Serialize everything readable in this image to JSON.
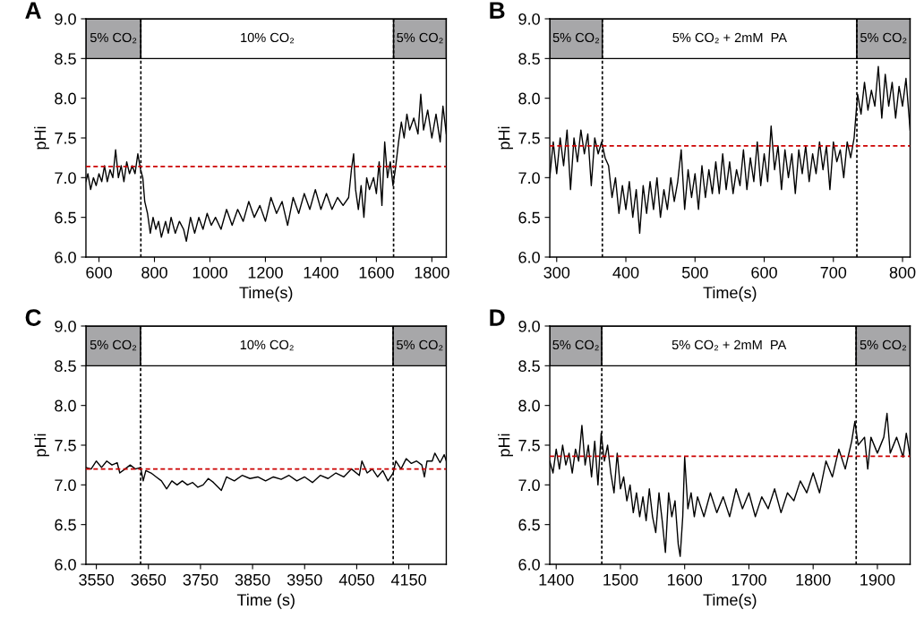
{
  "chart_data": [
    {
      "type": "line",
      "title": "A",
      "xlabel": "Time(s)",
      "ylabel": "pHi",
      "xlim": [
        553,
        1852
      ],
      "xticks": [
        600,
        800,
        1000,
        1200,
        1400,
        1600,
        1800
      ],
      "ylim": [
        6.0,
        9.0
      ],
      "yticks": [
        {
          "value": 6.0,
          "label": "6.0"
        },
        {
          "value": 6.5,
          "label": "6.5"
        },
        {
          "value": 7.0,
          "label": "7.0"
        },
        {
          "value": 7.5,
          "label": "7.5"
        },
        {
          "value": 8.0,
          "label": "8.0"
        },
        {
          "value": 8.5,
          "label": "8.5"
        },
        {
          "value": 9.0,
          "label": "9.0"
        }
      ],
      "bands": [
        {
          "axis": "x",
          "from": 553,
          "to": 751,
          "label": "5% CO₂",
          "color": "#a7a7a9"
        },
        {
          "axis": "x",
          "from": 751,
          "to": 1662,
          "label": "10% CO₂",
          "color": "#ffffff"
        },
        {
          "axis": "x",
          "from": 1662,
          "to": 1852,
          "label": "5% CO₂",
          "color": "#a7a7a9"
        }
      ],
      "ref_lines": [
        {
          "axis": "x",
          "value": 751,
          "color": "#000000",
          "line_style": "dotted"
        },
        {
          "axis": "x",
          "value": 1662,
          "color": "#000000",
          "line_style": "dotted"
        },
        {
          "axis": "y",
          "value": 7.14,
          "color": "#cc0000",
          "line_style": "dashed"
        }
      ],
      "series": [
        {
          "color": "#000000",
          "x": [
            553,
            560,
            570,
            580,
            590,
            600,
            610,
            620,
            630,
            640,
            650,
            660,
            670,
            680,
            690,
            700,
            710,
            720,
            730,
            740,
            750,
            758,
            765,
            775,
            785,
            795,
            805,
            815,
            825,
            840,
            850,
            860,
            875,
            890,
            905,
            915,
            930,
            945,
            960,
            975,
            990,
            1005,
            1020,
            1040,
            1060,
            1080,
            1100,
            1120,
            1140,
            1160,
            1180,
            1200,
            1220,
            1240,
            1260,
            1280,
            1300,
            1320,
            1340,
            1360,
            1380,
            1400,
            1420,
            1440,
            1460,
            1480,
            1500,
            1510,
            1518,
            1525,
            1535,
            1545,
            1555,
            1565,
            1575,
            1590,
            1600,
            1610,
            1620,
            1630,
            1640,
            1650,
            1660,
            1670,
            1680,
            1690,
            1700,
            1710,
            1720,
            1735,
            1750,
            1760,
            1770,
            1785,
            1800,
            1815,
            1830,
            1840,
            1852
          ],
          "values": [
            6.95,
            7.05,
            6.85,
            7.0,
            6.9,
            7.05,
            6.95,
            7.15,
            6.95,
            7.1,
            7.0,
            7.35,
            7.0,
            7.15,
            6.95,
            7.2,
            7.05,
            7.15,
            7.05,
            7.3,
            7.1,
            7.0,
            6.7,
            6.55,
            6.3,
            6.5,
            6.35,
            6.45,
            6.25,
            6.45,
            6.3,
            6.5,
            6.3,
            6.45,
            6.35,
            6.2,
            6.5,
            6.3,
            6.5,
            6.35,
            6.55,
            6.4,
            6.5,
            6.35,
            6.6,
            6.4,
            6.6,
            6.45,
            6.7,
            6.5,
            6.65,
            6.45,
            6.75,
            6.55,
            6.7,
            6.4,
            6.75,
            6.55,
            6.8,
            6.6,
            6.85,
            6.6,
            6.8,
            6.6,
            6.75,
            6.65,
            6.75,
            7.1,
            7.3,
            6.85,
            6.6,
            6.9,
            6.5,
            7.0,
            6.85,
            7.0,
            6.8,
            7.2,
            6.65,
            7.45,
            7.0,
            7.2,
            6.9,
            7.15,
            7.45,
            7.7,
            7.5,
            7.8,
            7.6,
            7.75,
            7.55,
            8.05,
            7.6,
            7.85,
            7.5,
            7.8,
            7.45,
            7.9,
            7.55
          ]
        }
      ]
    },
    {
      "type": "line",
      "title": "B",
      "xlabel": "Time(s)",
      "ylabel": "pHi",
      "xlim": [
        290,
        811
      ],
      "xticks": [
        300,
        400,
        500,
        600,
        700,
        800
      ],
      "ylim": [
        6.0,
        9.0
      ],
      "yticks": [
        {
          "value": 6.0,
          "label": "6.0"
        },
        {
          "value": 6.5,
          "label": "6.5"
        },
        {
          "value": 7.0,
          "label": "7.0"
        },
        {
          "value": 7.5,
          "label": "7.5"
        },
        {
          "value": 8.0,
          "label": "8.0"
        },
        {
          "value": 8.5,
          "label": "8.5"
        },
        {
          "value": 9.0,
          "label": "9.0"
        }
      ],
      "bands": [
        {
          "axis": "x",
          "from": 290,
          "to": 366,
          "label": "5% CO₂",
          "color": "#a7a7a9"
        },
        {
          "axis": "x",
          "from": 366,
          "to": 734,
          "label": "5% CO₂ + 2mM  PA",
          "color": "#ffffff"
        },
        {
          "axis": "x",
          "from": 734,
          "to": 811,
          "label": "5% CO₂",
          "color": "#a7a7a9"
        }
      ],
      "ref_lines": [
        {
          "axis": "x",
          "value": 366,
          "color": "#000000",
          "line_style": "dotted"
        },
        {
          "axis": "x",
          "value": 734,
          "color": "#000000",
          "line_style": "dotted"
        },
        {
          "axis": "y",
          "value": 7.4,
          "color": "#cc0000",
          "line_style": "dashed"
        }
      ],
      "series": [
        {
          "color": "#000000",
          "x": [
            290,
            295,
            300,
            305,
            310,
            315,
            320,
            325,
            330,
            335,
            340,
            345,
            350,
            355,
            360,
            365,
            370,
            375,
            380,
            385,
            390,
            395,
            400,
            405,
            410,
            415,
            420,
            425,
            430,
            435,
            440,
            445,
            450,
            455,
            460,
            465,
            470,
            475,
            480,
            485,
            490,
            495,
            500,
            505,
            510,
            515,
            520,
            525,
            530,
            535,
            540,
            545,
            550,
            555,
            560,
            565,
            570,
            575,
            580,
            585,
            590,
            595,
            600,
            605,
            610,
            615,
            620,
            625,
            630,
            635,
            640,
            645,
            650,
            655,
            660,
            665,
            670,
            675,
            680,
            685,
            690,
            695,
            700,
            705,
            710,
            715,
            720,
            725,
            730,
            735,
            740,
            745,
            750,
            755,
            760,
            765,
            770,
            775,
            780,
            785,
            790,
            795,
            800,
            805,
            811
          ],
          "values": [
            7.0,
            7.45,
            7.05,
            7.5,
            7.15,
            7.6,
            6.85,
            7.5,
            7.2,
            7.6,
            7.3,
            7.55,
            6.9,
            7.5,
            7.3,
            7.45,
            7.25,
            7.15,
            6.75,
            7.0,
            6.55,
            6.9,
            6.6,
            6.95,
            6.5,
            6.85,
            6.3,
            6.9,
            6.55,
            6.95,
            6.6,
            7.0,
            6.5,
            6.85,
            6.6,
            7.0,
            6.7,
            6.95,
            7.35,
            6.6,
            7.1,
            6.75,
            7.05,
            6.6,
            7.15,
            6.75,
            7.1,
            6.8,
            7.2,
            6.8,
            7.3,
            6.85,
            7.2,
            6.8,
            7.1,
            6.9,
            7.35,
            6.85,
            7.25,
            6.95,
            7.45,
            6.9,
            7.3,
            6.95,
            7.65,
            7.1,
            7.4,
            6.85,
            7.35,
            7.0,
            7.3,
            6.8,
            7.35,
            7.05,
            7.4,
            6.95,
            7.3,
            7.05,
            7.45,
            7.1,
            7.4,
            6.85,
            7.45,
            7.2,
            7.35,
            7.0,
            7.45,
            7.25,
            7.5,
            8.05,
            7.8,
            8.2,
            7.85,
            8.1,
            7.9,
            8.4,
            7.75,
            8.3,
            7.9,
            8.2,
            7.75,
            8.15,
            7.9,
            8.25,
            7.6
          ]
        }
      ]
    },
    {
      "type": "line",
      "title": "C",
      "xlabel": "Time (s)",
      "ylabel": "pHi",
      "xlim": [
        3530,
        4222
      ],
      "xticks": [
        3550,
        3650,
        3750,
        3850,
        3950,
        4050,
        4150
      ],
      "ylim": [
        6.0,
        9.0
      ],
      "yticks": [
        {
          "value": 6.0,
          "label": "6.0"
        },
        {
          "value": 6.5,
          "label": "6.5"
        },
        {
          "value": 7.0,
          "label": "7.0"
        },
        {
          "value": 7.5,
          "label": "7.5"
        },
        {
          "value": 8.0,
          "label": "8.0"
        },
        {
          "value": 8.5,
          "label": "8.5"
        },
        {
          "value": 9.0,
          "label": "9.0"
        }
      ],
      "bands": [
        {
          "axis": "x",
          "from": 3530,
          "to": 3635,
          "label": "5% CO₂",
          "color": "#a7a7a9"
        },
        {
          "axis": "x",
          "from": 3635,
          "to": 4120,
          "label": "10% CO₂",
          "color": "#ffffff"
        },
        {
          "axis": "x",
          "from": 4120,
          "to": 4222,
          "label": "5% CO₂",
          "color": "#a7a7a9"
        }
      ],
      "ref_lines": [
        {
          "axis": "x",
          "value": 3635,
          "color": "#000000",
          "line_style": "dotted"
        },
        {
          "axis": "x",
          "value": 4120,
          "color": "#000000",
          "line_style": "dotted"
        },
        {
          "axis": "y",
          "value": 7.2,
          "color": "#cc0000",
          "line_style": "dashed"
        }
      ],
      "series": [
        {
          "color": "#000000",
          "x": [
            3530,
            3540,
            3550,
            3560,
            3570,
            3580,
            3590,
            3595,
            3605,
            3615,
            3625,
            3635,
            3640,
            3645,
            3655,
            3665,
            3675,
            3685,
            3695,
            3705,
            3715,
            3725,
            3735,
            3745,
            3755,
            3765,
            3775,
            3790,
            3800,
            3815,
            3830,
            3845,
            3860,
            3875,
            3890,
            3905,
            3920,
            3935,
            3950,
            3965,
            3980,
            3995,
            4010,
            4025,
            4040,
            4055,
            4060,
            4070,
            4080,
            4090,
            4100,
            4110,
            4120,
            4125,
            4135,
            4145,
            4155,
            4165,
            4175,
            4180,
            4185,
            4195,
            4200,
            4210,
            4218,
            4222
          ],
          "values": [
            7.22,
            7.2,
            7.3,
            7.22,
            7.3,
            7.25,
            7.28,
            7.15,
            7.2,
            7.25,
            7.2,
            7.22,
            7.05,
            7.18,
            7.15,
            7.1,
            7.05,
            6.95,
            7.05,
            7.0,
            7.05,
            7.0,
            7.03,
            6.97,
            7.0,
            7.08,
            7.03,
            6.93,
            7.1,
            7.05,
            7.12,
            7.08,
            7.1,
            7.05,
            7.1,
            7.07,
            7.12,
            7.05,
            7.1,
            7.03,
            7.12,
            7.08,
            7.15,
            7.1,
            7.2,
            7.12,
            7.3,
            7.15,
            7.2,
            7.1,
            7.18,
            7.05,
            7.15,
            7.3,
            7.2,
            7.33,
            7.27,
            7.3,
            7.25,
            7.1,
            7.3,
            7.3,
            7.4,
            7.28,
            7.38,
            7.3
          ]
        }
      ]
    },
    {
      "type": "line",
      "title": "D",
      "xlabel": "Time(s)",
      "ylabel": "pHi",
      "xlim": [
        1390,
        1951
      ],
      "xticks": [
        1400,
        1500,
        1600,
        1700,
        1800,
        1900
      ],
      "ylim": [
        6.0,
        9.0
      ],
      "yticks": [
        {
          "value": 6.0,
          "label": "6.0"
        },
        {
          "value": 6.5,
          "label": "6.5"
        },
        {
          "value": 7.0,
          "label": "7.0"
        },
        {
          "value": 7.5,
          "label": "7.5"
        },
        {
          "value": 8.0,
          "label": "8.0"
        },
        {
          "value": 8.5,
          "label": "8.5"
        },
        {
          "value": 9.0,
          "label": "9.0"
        }
      ],
      "bands": [
        {
          "axis": "x",
          "from": 1390,
          "to": 1471,
          "label": "5% CO₂",
          "color": "#a7a7a9"
        },
        {
          "axis": "x",
          "from": 1471,
          "to": 1867,
          "label": "5% CO₂ + 2mM  PA",
          "color": "#ffffff"
        },
        {
          "axis": "x",
          "from": 1867,
          "to": 1951,
          "label": "5% CO₂",
          "color": "#a7a7a9"
        }
      ],
      "ref_lines": [
        {
          "axis": "x",
          "value": 1471,
          "color": "#000000",
          "line_style": "dotted"
        },
        {
          "axis": "x",
          "value": 1867,
          "color": "#000000",
          "line_style": "dotted"
        },
        {
          "axis": "y",
          "value": 7.36,
          "color": "#cc0000",
          "line_style": "dashed"
        }
      ],
      "series": [
        {
          "color": "#000000",
          "x": [
            1390,
            1395,
            1400,
            1405,
            1410,
            1415,
            1420,
            1425,
            1430,
            1435,
            1440,
            1445,
            1450,
            1455,
            1460,
            1465,
            1470,
            1475,
            1480,
            1485,
            1490,
            1495,
            1500,
            1505,
            1510,
            1515,
            1520,
            1525,
            1530,
            1535,
            1540,
            1545,
            1550,
            1555,
            1560,
            1565,
            1570,
            1575,
            1580,
            1585,
            1590,
            1593,
            1597,
            1600,
            1605,
            1610,
            1615,
            1620,
            1630,
            1640,
            1650,
            1660,
            1670,
            1680,
            1690,
            1700,
            1710,
            1720,
            1730,
            1740,
            1750,
            1760,
            1770,
            1780,
            1790,
            1800,
            1810,
            1820,
            1830,
            1840,
            1850,
            1860,
            1865,
            1870,
            1880,
            1885,
            1890,
            1900,
            1910,
            1915,
            1920,
            1930,
            1940,
            1945,
            1951
          ],
          "values": [
            7.3,
            7.15,
            7.45,
            7.2,
            7.5,
            7.25,
            7.4,
            7.15,
            7.45,
            7.3,
            7.75,
            7.25,
            7.5,
            7.1,
            7.55,
            7.0,
            7.65,
            7.3,
            7.5,
            7.15,
            6.9,
            7.4,
            6.95,
            7.1,
            6.8,
            7.0,
            6.65,
            6.9,
            6.6,
            6.85,
            6.55,
            6.95,
            6.6,
            6.4,
            6.9,
            6.55,
            6.15,
            6.9,
            6.6,
            6.8,
            6.25,
            6.1,
            6.6,
            7.35,
            6.7,
            6.9,
            6.6,
            6.85,
            6.6,
            6.9,
            6.65,
            6.85,
            6.6,
            6.95,
            6.7,
            6.9,
            6.6,
            6.85,
            6.7,
            6.95,
            6.65,
            6.9,
            6.8,
            7.05,
            6.9,
            7.15,
            6.9,
            7.3,
            7.1,
            7.45,
            7.2,
            7.55,
            7.8,
            7.5,
            7.6,
            7.2,
            7.6,
            7.4,
            7.6,
            7.9,
            7.4,
            7.6,
            7.35,
            7.65,
            7.35
          ]
        }
      ]
    }
  ]
}
